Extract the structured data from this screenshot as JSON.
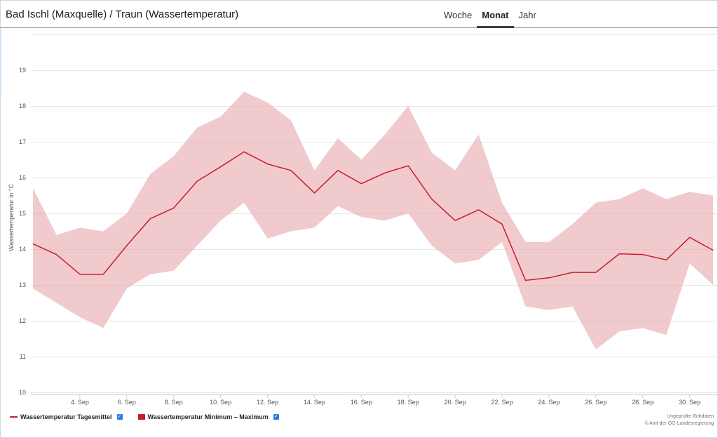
{
  "header": {
    "title": "Bad Ischl (Maxquelle) / Traun (Wassertemperatur)"
  },
  "tabs": [
    {
      "label": "Woche",
      "active": false
    },
    {
      "label": "Monat",
      "active": true
    },
    {
      "label": "Jahr",
      "active": false
    }
  ],
  "legend": {
    "mean_label": "Wassertemperatur Tagesmittel",
    "range_label": "Wassertemperatur Minimum – Maximum",
    "mean_checked": true,
    "range_checked": true
  },
  "credits": {
    "line1": "Ungeprüfte Rohdaten",
    "line2": "© Amt der OÖ Landesregierung"
  },
  "colors": {
    "mean_line": "#c81e2b",
    "range_fill": "#e8aab0",
    "checkbox": "#2d7be0",
    "active_tab_underline": "#3a3f4a"
  },
  "chart_data": {
    "type": "line",
    "ylabel": "Wassertemperatur in °C",
    "ylim": [
      10,
      20
    ],
    "yticks": [
      10,
      11,
      12,
      13,
      14,
      15,
      16,
      17,
      18,
      19
    ],
    "xticks": [
      "4. Sep",
      "6. Sep",
      "8. Sep",
      "10. Sep",
      "12. Sep",
      "14. Sep",
      "16. Sep",
      "18. Sep",
      "20. Sep",
      "22. Sep",
      "24. Sep",
      "26. Sep",
      "28. Sep",
      "30. Sep"
    ],
    "x": [
      "2. Sep",
      "3. Sep",
      "4. Sep",
      "5. Sep",
      "6. Sep",
      "7. Sep",
      "8. Sep",
      "9. Sep",
      "10. Sep",
      "11. Sep",
      "12. Sep",
      "13. Sep",
      "14. Sep",
      "15. Sep",
      "16. Sep",
      "17. Sep",
      "18. Sep",
      "19. Sep",
      "20. Sep",
      "21. Sep",
      "22. Sep",
      "23. Sep",
      "24. Sep",
      "25. Sep",
      "26. Sep",
      "27. Sep",
      "28. Sep",
      "29. Sep",
      "30. Sep",
      "1. Okt"
    ],
    "grid": true,
    "legend_position": "bottom-left",
    "series": [
      {
        "name": "Wassertemperatur Tagesmittel",
        "type": "line",
        "values": [
          14.15,
          13.85,
          13.3,
          13.3,
          14.1,
          14.85,
          15.15,
          15.9,
          16.3,
          16.72,
          16.38,
          16.2,
          15.57,
          16.2,
          15.83,
          16.13,
          16.33,
          15.4,
          14.8,
          15.1,
          14.7,
          13.13,
          13.2,
          13.35,
          13.35,
          13.87,
          13.85,
          13.7,
          14.33,
          13.97
        ]
      },
      {
        "name": "Wassertemperatur Minimum – Maximum",
        "type": "arearange",
        "low": [
          12.9,
          12.5,
          12.1,
          11.8,
          12.9,
          13.3,
          13.4,
          14.1,
          14.8,
          15.3,
          14.3,
          14.5,
          14.6,
          15.2,
          14.9,
          14.8,
          15.0,
          14.1,
          13.6,
          13.7,
          14.2,
          12.4,
          12.3,
          12.4,
          11.2,
          11.7,
          11.8,
          11.6,
          13.6,
          13.0
        ],
        "high": [
          15.7,
          14.4,
          14.6,
          14.5,
          15.0,
          16.1,
          16.6,
          17.4,
          17.7,
          18.4,
          18.1,
          17.6,
          16.2,
          17.1,
          16.5,
          17.2,
          18.0,
          16.7,
          16.2,
          17.2,
          15.3,
          14.2,
          14.2,
          14.7,
          15.3,
          15.4,
          15.7,
          15.4,
          15.6,
          15.5
        ]
      }
    ]
  }
}
